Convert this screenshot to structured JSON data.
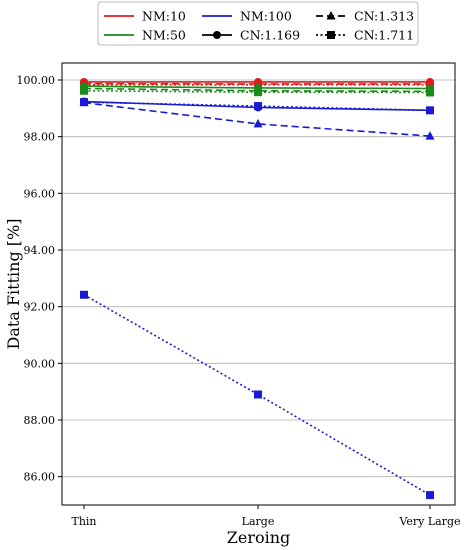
{
  "chart_data": {
    "type": "line",
    "categories": [
      "Thin",
      "Large",
      "Very Large"
    ],
    "xlabel": "Zeroing",
    "ylabel": "Data Fitting [%]",
    "ylim": [
      85.0,
      100.6
    ],
    "yticks": [
      "86.00",
      "88.00",
      "90.00",
      "92.00",
      "94.00",
      "96.00",
      "98.00",
      "100.00"
    ],
    "grid": "horizontal",
    "legend": {
      "placement": "top-outside",
      "entries": [
        {
          "label": "NM:10",
          "kind": "color",
          "color": "#e31a1c"
        },
        {
          "label": "NM:50",
          "kind": "color",
          "color": "#1a8a1a"
        },
        {
          "label": "NM:100",
          "kind": "color",
          "color": "#1a1ad6"
        },
        {
          "label": "CN:1.169",
          "kind": "style",
          "dash": "solid",
          "marker": "circle"
        },
        {
          "label": "CN:1.313",
          "kind": "style",
          "dash": "dashed",
          "marker": "triangle"
        },
        {
          "label": "CN:1.711",
          "kind": "style",
          "dash": "dotted",
          "marker": "square"
        }
      ]
    },
    "series": [
      {
        "nm": "NM:10",
        "cn": "CN:1.169",
        "color": "#e31a1c",
        "dash": "solid",
        "marker": "circle",
        "values": [
          99.93,
          99.93,
          99.93
        ]
      },
      {
        "nm": "NM:10",
        "cn": "CN:1.313",
        "color": "#e31a1c",
        "dash": "dashed",
        "marker": "triangle",
        "values": [
          99.87,
          99.86,
          99.86
        ]
      },
      {
        "nm": "NM:10",
        "cn": "CN:1.711",
        "color": "#e31a1c",
        "dash": "dotted",
        "marker": "square",
        "values": [
          99.83,
          99.83,
          99.83
        ]
      },
      {
        "nm": "NM:50",
        "cn": "CN:1.169",
        "color": "#1a8a1a",
        "dash": "solid",
        "marker": "circle",
        "values": [
          99.78,
          99.72,
          99.7
        ]
      },
      {
        "nm": "NM:50",
        "cn": "CN:1.313",
        "color": "#1a8a1a",
        "dash": "dashed",
        "marker": "triangle",
        "values": [
          99.7,
          99.62,
          99.6
        ]
      },
      {
        "nm": "NM:50",
        "cn": "CN:1.711",
        "color": "#1a8a1a",
        "dash": "dotted",
        "marker": "square",
        "values": [
          99.62,
          99.57,
          99.56
        ]
      },
      {
        "nm": "NM:100",
        "cn": "CN:1.169",
        "color": "#1a1ad6",
        "dash": "solid",
        "marker": "circle",
        "values": [
          99.24,
          99.03,
          98.93
        ]
      },
      {
        "nm": "NM:100",
        "cn": "CN:1.313",
        "color": "#1a1ad6",
        "dash": "dashed",
        "marker": "triangle",
        "values": [
          99.2,
          98.45,
          98.02
        ]
      },
      {
        "nm": "NM:100",
        "cn": "CN:1.711",
        "color": "#1a1ad6",
        "dash": "dotted",
        "marker": "square",
        "values": [
          92.42,
          88.9,
          85.35
        ]
      },
      {
        "nm": "NM:100",
        "cn": "CN:1.711",
        "color": "#1a1ad6",
        "dash": "dotted",
        "marker": "square",
        "values": [
          99.22,
          99.08,
          98.93
        ]
      }
    ]
  }
}
